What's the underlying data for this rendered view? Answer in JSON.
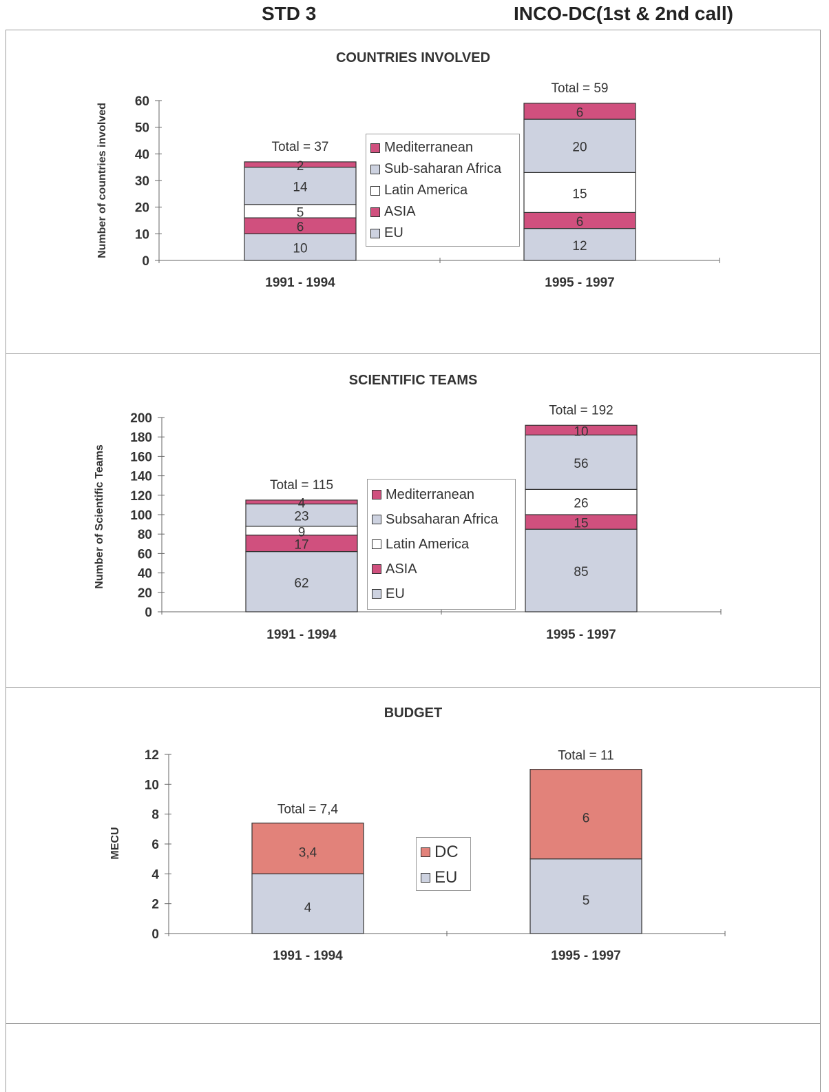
{
  "header": {
    "left": "STD 3",
    "right": "INCO-DC(1st & 2nd call)"
  },
  "colors": {
    "mediterranean": "#d0507e",
    "subsaharan": "#cdd2e0",
    "latin_america": "#ffffff",
    "asia": "#d0507e",
    "eu": "#cdd2e0",
    "dc": "#e2827a"
  },
  "chart_data": [
    {
      "type": "bar",
      "stacked": true,
      "title": "COUNTRIES INVOLVED",
      "ylabel": "Number of countries involved",
      "ylim": [
        0,
        60
      ],
      "yticks": [
        "0",
        "10",
        "20",
        "30",
        "40",
        "50",
        "60"
      ],
      "categories": [
        "1991 - 1994",
        "1995 - 1997"
      ],
      "totals": [
        "Total = 37",
        "Total = 59"
      ],
      "series": [
        {
          "name": "EU",
          "values": [
            10,
            12
          ]
        },
        {
          "name": "ASIA",
          "values": [
            6,
            6
          ]
        },
        {
          "name": "Latin America",
          "values": [
            5,
            15
          ]
        },
        {
          "name": "Sub-saharan Africa",
          "values": [
            14,
            20
          ]
        },
        {
          "name": "Mediterranean",
          "values": [
            2,
            6
          ]
        }
      ],
      "legend": [
        "Mediterranean",
        "Sub-saharan Africa",
        "Latin America",
        "ASIA",
        "EU"
      ],
      "legend_position": "center",
      "grid": false
    },
    {
      "type": "bar",
      "stacked": true,
      "title": "SCIENTIFIC TEAMS",
      "ylabel": "Number of Scientific Teams",
      "ylim": [
        0,
        200
      ],
      "yticks": [
        "0",
        "20",
        "40",
        "60",
        "80",
        "100",
        "120",
        "140",
        "160",
        "180",
        "200"
      ],
      "categories": [
        "1991 - 1994",
        "1995 - 1997"
      ],
      "totals": [
        "Total = 115",
        "Total = 192"
      ],
      "series": [
        {
          "name": "EU",
          "values": [
            62,
            85
          ]
        },
        {
          "name": "ASIA",
          "values": [
            17,
            15
          ]
        },
        {
          "name": "Latin America",
          "values": [
            9,
            26
          ]
        },
        {
          "name": "Subsaharan Africa",
          "values": [
            23,
            56
          ]
        },
        {
          "name": "Mediterranean",
          "values": [
            4,
            10
          ]
        }
      ],
      "legend": [
        "Mediterranean",
        "Subsaharan Africa",
        "Latin America",
        "ASIA",
        "EU"
      ],
      "legend_position": "center",
      "grid": false
    },
    {
      "type": "bar",
      "stacked": true,
      "title": "BUDGET",
      "ylabel": "MECU",
      "ylim": [
        0,
        12
      ],
      "yticks": [
        "0",
        "2",
        "4",
        "6",
        "8",
        "10",
        "12"
      ],
      "categories": [
        "1991 - 1994",
        "1995 - 1997"
      ],
      "totals": [
        "Total = 7,4",
        "Total = 11"
      ],
      "series": [
        {
          "name": "EU",
          "values": [
            4,
            5
          ],
          "labels": [
            "4",
            "5"
          ]
        },
        {
          "name": "DC",
          "values": [
            3.4,
            6
          ],
          "labels": [
            "3,4",
            "6"
          ]
        }
      ],
      "legend": [
        "DC",
        "EU"
      ],
      "legend_position": "center",
      "grid": false
    }
  ]
}
